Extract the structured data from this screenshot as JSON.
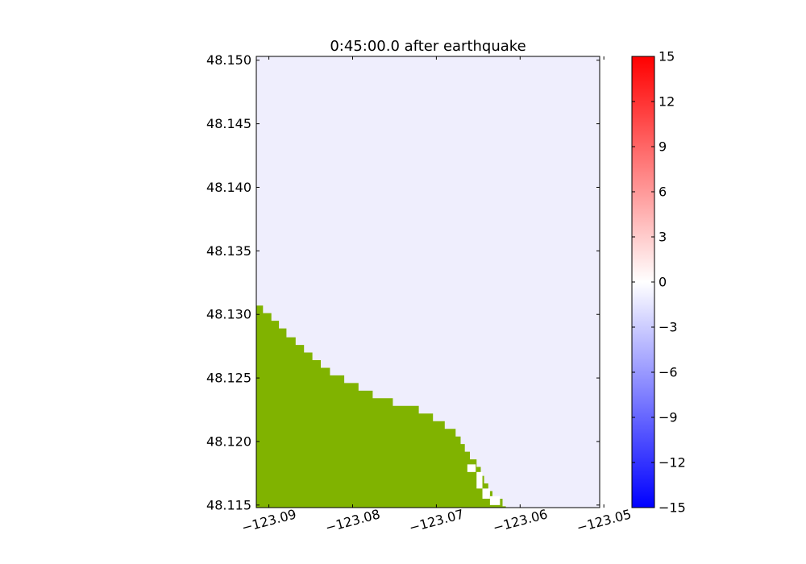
{
  "chart_data": {
    "type": "heatmap",
    "title": "0:45:00.0 after earthquake",
    "xlabel": "",
    "ylabel": "",
    "xlim": [
      -123.0915,
      -123.0505
    ],
    "ylim": [
      48.1148,
      48.1503
    ],
    "x_ticks": [
      -123.09,
      -123.08,
      -123.07,
      -123.06,
      -123.05
    ],
    "x_tick_labels": [
      "−123.09",
      "−123.08",
      "−123.07",
      "−123.06",
      "−123.05"
    ],
    "y_ticks": [
      48.115,
      48.12,
      48.125,
      48.13,
      48.135,
      48.14,
      48.145,
      48.15
    ],
    "y_tick_labels": [
      "48.115",
      "48.120",
      "48.125",
      "48.130",
      "48.135",
      "48.140",
      "48.145",
      "48.150"
    ],
    "water_color": "#efeefd",
    "land_color": "#80b300",
    "land_boundary": [
      [
        -123.0915,
        48.1307
      ],
      [
        -123.0907,
        48.1307
      ],
      [
        -123.0907,
        48.1301
      ],
      [
        -123.0897,
        48.1301
      ],
      [
        -123.0897,
        48.1295
      ],
      [
        -123.0888,
        48.1295
      ],
      [
        -123.0888,
        48.1289
      ],
      [
        -123.0879,
        48.1289
      ],
      [
        -123.0879,
        48.1282
      ],
      [
        -123.0868,
        48.1282
      ],
      [
        -123.0868,
        48.1276
      ],
      [
        -123.0858,
        48.1276
      ],
      [
        -123.0858,
        48.127
      ],
      [
        -123.0848,
        48.127
      ],
      [
        -123.0848,
        48.1264
      ],
      [
        -123.0838,
        48.1264
      ],
      [
        -123.0838,
        48.1258
      ],
      [
        -123.0827,
        48.1258
      ],
      [
        -123.0827,
        48.1252
      ],
      [
        -123.081,
        48.1252
      ],
      [
        -123.081,
        48.1246
      ],
      [
        -123.0793,
        48.1246
      ],
      [
        -123.0793,
        48.124
      ],
      [
        -123.0776,
        48.124
      ],
      [
        -123.0776,
        48.1234
      ],
      [
        -123.0752,
        48.1234
      ],
      [
        -123.0752,
        48.1228
      ],
      [
        -123.0721,
        48.1228
      ],
      [
        -123.0721,
        48.1222
      ],
      [
        -123.0704,
        48.1222
      ],
      [
        -123.0704,
        48.1216
      ],
      [
        -123.069,
        48.1216
      ],
      [
        -123.069,
        48.121
      ],
      [
        -123.0677,
        48.121
      ],
      [
        -123.0677,
        48.1204
      ],
      [
        -123.0671,
        48.1204
      ],
      [
        -123.0671,
        48.1198
      ],
      [
        -123.0666,
        48.1198
      ],
      [
        -123.0666,
        48.1192
      ],
      [
        -123.066,
        48.1192
      ],
      [
        -123.066,
        48.1186
      ],
      [
        -123.0652,
        48.1186
      ],
      [
        -123.0652,
        48.118
      ],
      [
        -123.0647,
        48.118
      ],
      [
        -123.0647,
        48.1173
      ],
      [
        -123.0643,
        48.1173
      ],
      [
        -123.0643,
        48.1167
      ],
      [
        -123.0638,
        48.1167
      ],
      [
        -123.0638,
        48.1161
      ],
      [
        -123.0633,
        48.1161
      ],
      [
        -123.0633,
        48.1155
      ],
      [
        -123.0621,
        48.1155
      ],
      [
        -123.0621,
        48.1149
      ],
      [
        -123.0617,
        48.1149
      ],
      [
        -123.0617,
        48.1148
      ],
      [
        -123.0915,
        48.1148
      ]
    ],
    "dry_cells": [
      [
        -123.0663,
        48.1176,
        -123.0653,
        48.1182
      ],
      [
        -123.0652,
        48.1163,
        -123.0645,
        48.1176
      ],
      [
        -123.0645,
        48.1155,
        -123.0636,
        48.1163
      ],
      [
        -123.0636,
        48.115,
        -123.0624,
        48.1157
      ]
    ],
    "dry_color": "#ffffff",
    "colorbar": {
      "min": -15,
      "max": 15,
      "ticks": [
        -15,
        -12,
        -9,
        -6,
        -3,
        0,
        3,
        6,
        9,
        12,
        15
      ],
      "tick_labels": [
        "−15",
        "−12",
        "−9",
        "−6",
        "−3",
        "0",
        "3",
        "6",
        "9",
        "12",
        "15"
      ],
      "color_min": "#0000ff",
      "color_mid": "#ffffff",
      "color_max": "#ff0000"
    }
  }
}
